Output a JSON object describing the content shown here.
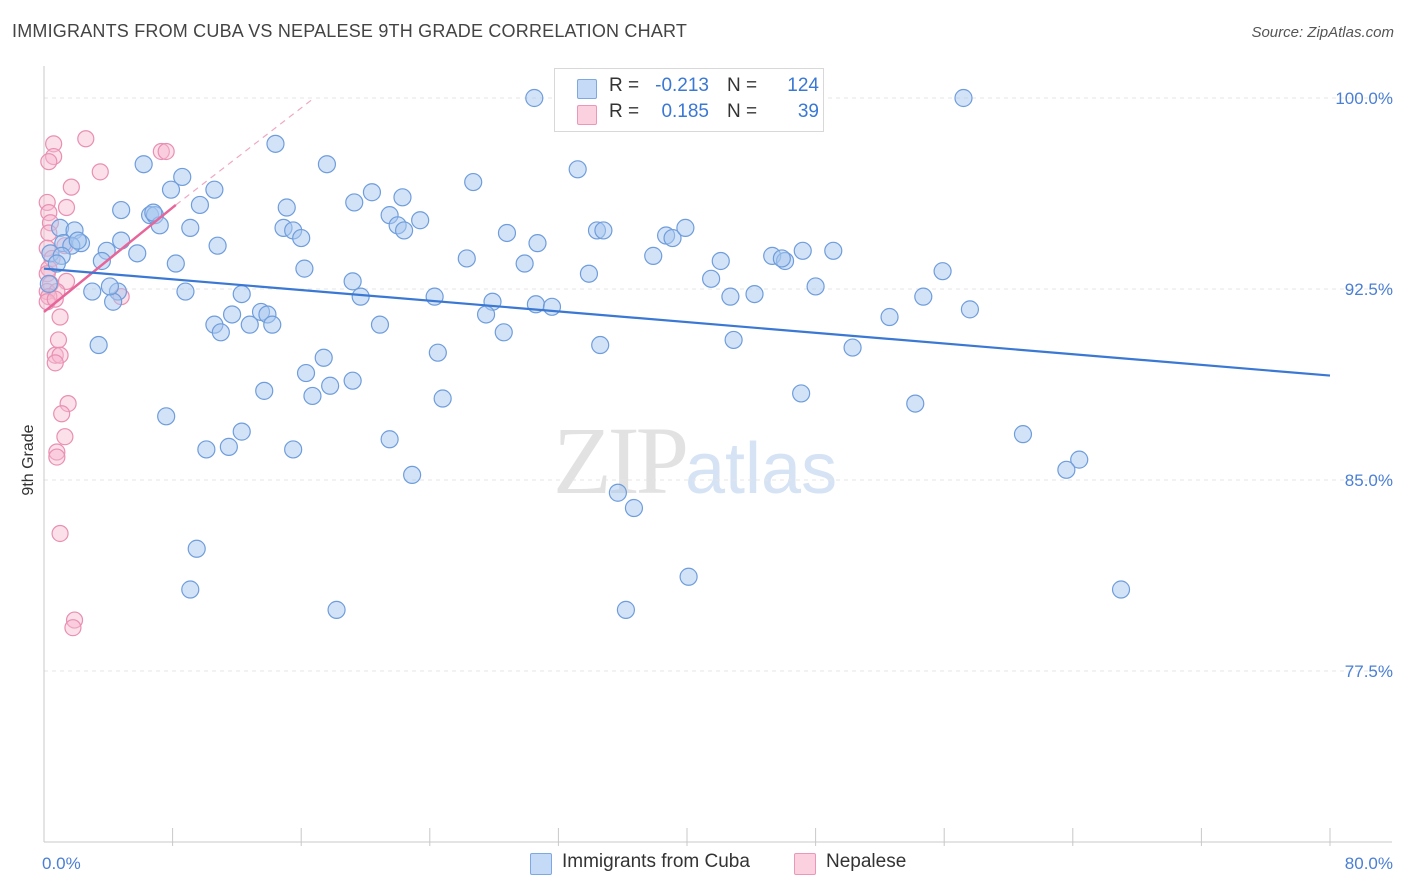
{
  "header": {
    "title": "IMMIGRANTS FROM CUBA VS NEPALESE 9TH GRADE CORRELATION CHART",
    "source": "Source: ZipAtlas.com"
  },
  "legend": {
    "rows": [
      {
        "r_label": "R =",
        "r_value": "-0.213",
        "n_label": "N =",
        "n_value": "124",
        "color": "#a8c8f0"
      },
      {
        "r_label": "R =",
        "r_value": "0.185",
        "n_label": "N =",
        "n_value": "39",
        "color": "#f6b8ce"
      }
    ]
  },
  "bottom_legend": {
    "items": [
      {
        "label": "Immigrants from Cuba",
        "color": "#a8c8f0"
      },
      {
        "label": "Nepalese",
        "color": "#f6b8ce"
      }
    ]
  },
  "watermark": {
    "zip": "ZIP",
    "atlas": "atlas"
  },
  "chart_data": {
    "type": "scatter",
    "title": "IMMIGRANTS FROM CUBA VS NEPALESE 9TH GRADE CORRELATION CHART",
    "xlabel": "",
    "ylabel": "9th Grade",
    "xlim": [
      0,
      80
    ],
    "ylim": [
      70.0,
      100.0
    ],
    "x_tick_labels": [
      "0.0%",
      "80.0%"
    ],
    "y_ticks": [
      77.5,
      85.0,
      92.5,
      100.0
    ],
    "y_tick_labels": [
      "77.5%",
      "85.0%",
      "92.5%",
      "100.0%"
    ],
    "grid": true,
    "legend_position": "top-center",
    "colors": {
      "cuba": "#3a78d4",
      "cuba_fill": "#a8c8f0",
      "nepalese": "#e8659a",
      "nepalese_fill": "#f6b8ce"
    },
    "series": [
      {
        "name": "Immigrants from Cuba",
        "trend": {
          "x": [
            0.0,
            80.0
          ],
          "y": [
            93.3,
            89.1
          ]
        },
        "points": [
          [
            30.5,
            100.0
          ],
          [
            57.2,
            100.0
          ],
          [
            14.4,
            98.2
          ],
          [
            6.2,
            97.4
          ],
          [
            8.6,
            96.9
          ],
          [
            17.6,
            97.4
          ],
          [
            33.2,
            97.2
          ],
          [
            26.7,
            96.7
          ],
          [
            10.6,
            96.4
          ],
          [
            7.9,
            96.4
          ],
          [
            20.4,
            96.3
          ],
          [
            22.3,
            96.1
          ],
          [
            19.3,
            95.9
          ],
          [
            4.8,
            95.6
          ],
          [
            15.1,
            95.7
          ],
          [
            9.7,
            95.8
          ],
          [
            6.6,
            95.4
          ],
          [
            6.9,
            95.4
          ],
          [
            21.5,
            95.4
          ],
          [
            23.4,
            95.2
          ],
          [
            7.2,
            95.0
          ],
          [
            9.1,
            94.9
          ],
          [
            1.0,
            94.9
          ],
          [
            1.9,
            94.8
          ],
          [
            14.9,
            94.9
          ],
          [
            15.5,
            94.8
          ],
          [
            16.0,
            94.5
          ],
          [
            22.0,
            95.0
          ],
          [
            22.4,
            94.8
          ],
          [
            28.8,
            94.7
          ],
          [
            34.4,
            94.8
          ],
          [
            34.8,
            94.8
          ],
          [
            38.7,
            94.6
          ],
          [
            39.1,
            94.5
          ],
          [
            39.9,
            94.9
          ],
          [
            30.7,
            94.3
          ],
          [
            1.2,
            94.3
          ],
          [
            2.3,
            94.3
          ],
          [
            4.8,
            94.4
          ],
          [
            1.7,
            94.2
          ],
          [
            0.4,
            93.9
          ],
          [
            1.1,
            93.8
          ],
          [
            3.9,
            94.0
          ],
          [
            5.8,
            93.9
          ],
          [
            3.6,
            93.6
          ],
          [
            8.2,
            93.5
          ],
          [
            16.2,
            93.3
          ],
          [
            29.9,
            93.5
          ],
          [
            37.9,
            93.8
          ],
          [
            42.1,
            93.6
          ],
          [
            45.3,
            93.8
          ],
          [
            46.1,
            93.6
          ],
          [
            47.2,
            94.0
          ],
          [
            49.1,
            94.0
          ],
          [
            41.5,
            92.9
          ],
          [
            33.9,
            93.1
          ],
          [
            3.0,
            92.4
          ],
          [
            4.6,
            92.4
          ],
          [
            8.8,
            92.4
          ],
          [
            12.3,
            92.3
          ],
          [
            19.2,
            92.8
          ],
          [
            19.7,
            92.2
          ],
          [
            24.3,
            92.2
          ],
          [
            27.9,
            92.0
          ],
          [
            42.7,
            92.2
          ],
          [
            44.2,
            92.3
          ],
          [
            48.0,
            92.6
          ],
          [
            54.7,
            92.2
          ],
          [
            55.9,
            93.2
          ],
          [
            4.3,
            92.0
          ],
          [
            4.1,
            92.6
          ],
          [
            30.6,
            91.9
          ],
          [
            31.6,
            91.8
          ],
          [
            27.5,
            91.5
          ],
          [
            11.7,
            91.5
          ],
          [
            12.8,
            91.1
          ],
          [
            13.5,
            91.6
          ],
          [
            13.9,
            91.5
          ],
          [
            10.6,
            91.1
          ],
          [
            11.0,
            90.8
          ],
          [
            14.2,
            91.1
          ],
          [
            20.9,
            91.1
          ],
          [
            28.6,
            90.8
          ],
          [
            52.6,
            91.4
          ],
          [
            57.6,
            91.7
          ],
          [
            3.4,
            90.3
          ],
          [
            24.5,
            90.0
          ],
          [
            34.6,
            90.3
          ],
          [
            42.9,
            90.5
          ],
          [
            50.3,
            90.2
          ],
          [
            16.3,
            89.2
          ],
          [
            17.4,
            89.8
          ],
          [
            19.2,
            88.9
          ],
          [
            17.8,
            88.7
          ],
          [
            13.7,
            88.5
          ],
          [
            16.7,
            88.3
          ],
          [
            24.8,
            88.2
          ],
          [
            47.1,
            88.4
          ],
          [
            54.2,
            88.0
          ],
          [
            7.6,
            87.5
          ],
          [
            12.3,
            86.9
          ],
          [
            21.5,
            86.6
          ],
          [
            10.1,
            86.2
          ],
          [
            11.5,
            86.3
          ],
          [
            15.5,
            86.2
          ],
          [
            60.9,
            86.8
          ],
          [
            64.4,
            85.8
          ],
          [
            63.6,
            85.4
          ],
          [
            22.9,
            85.2
          ],
          [
            35.7,
            84.5
          ],
          [
            36.7,
            83.9
          ],
          [
            9.5,
            82.3
          ],
          [
            40.1,
            81.2
          ],
          [
            67.0,
            80.7
          ],
          [
            9.1,
            80.7
          ],
          [
            18.2,
            79.9
          ],
          [
            36.2,
            79.9
          ],
          [
            6.8,
            95.5
          ],
          [
            2.1,
            94.4
          ],
          [
            10.8,
            94.2
          ],
          [
            45.9,
            93.7
          ],
          [
            26.3,
            93.7
          ],
          [
            0.8,
            93.5
          ],
          [
            0.3,
            92.7
          ]
        ]
      },
      {
        "name": "Nepalese",
        "trend": {
          "x": [
            0.0,
            8.2
          ],
          "y": [
            91.6,
            95.8
          ]
        },
        "trend_extension": {
          "x": [
            8.2,
            16.8
          ],
          "y": [
            95.8,
            100.0
          ]
        },
        "points": [
          [
            2.6,
            98.4
          ],
          [
            7.3,
            97.9
          ],
          [
            7.6,
            97.9
          ],
          [
            0.6,
            98.2
          ],
          [
            0.6,
            97.7
          ],
          [
            0.3,
            97.5
          ],
          [
            3.5,
            97.1
          ],
          [
            1.7,
            96.5
          ],
          [
            0.2,
            95.9
          ],
          [
            0.3,
            95.5
          ],
          [
            1.4,
            95.7
          ],
          [
            0.4,
            95.1
          ],
          [
            0.3,
            94.7
          ],
          [
            1.3,
            94.2
          ],
          [
            0.2,
            94.1
          ],
          [
            0.5,
            93.7
          ],
          [
            0.3,
            93.3
          ],
          [
            0.2,
            93.1
          ],
          [
            0.4,
            92.7
          ],
          [
            1.4,
            92.8
          ],
          [
            0.2,
            92.4
          ],
          [
            0.8,
            92.4
          ],
          [
            0.3,
            92.2
          ],
          [
            0.2,
            92.0
          ],
          [
            0.7,
            92.1
          ],
          [
            1.0,
            91.4
          ],
          [
            4.8,
            92.2
          ],
          [
            0.9,
            90.5
          ],
          [
            0.7,
            89.9
          ],
          [
            1.0,
            89.9
          ],
          [
            0.7,
            89.6
          ],
          [
            1.5,
            88.0
          ],
          [
            1.1,
            87.6
          ],
          [
            1.3,
            86.7
          ],
          [
            0.8,
            86.1
          ],
          [
            0.8,
            85.9
          ],
          [
            1.0,
            82.9
          ],
          [
            1.9,
            79.5
          ],
          [
            1.8,
            79.2
          ]
        ]
      }
    ]
  }
}
